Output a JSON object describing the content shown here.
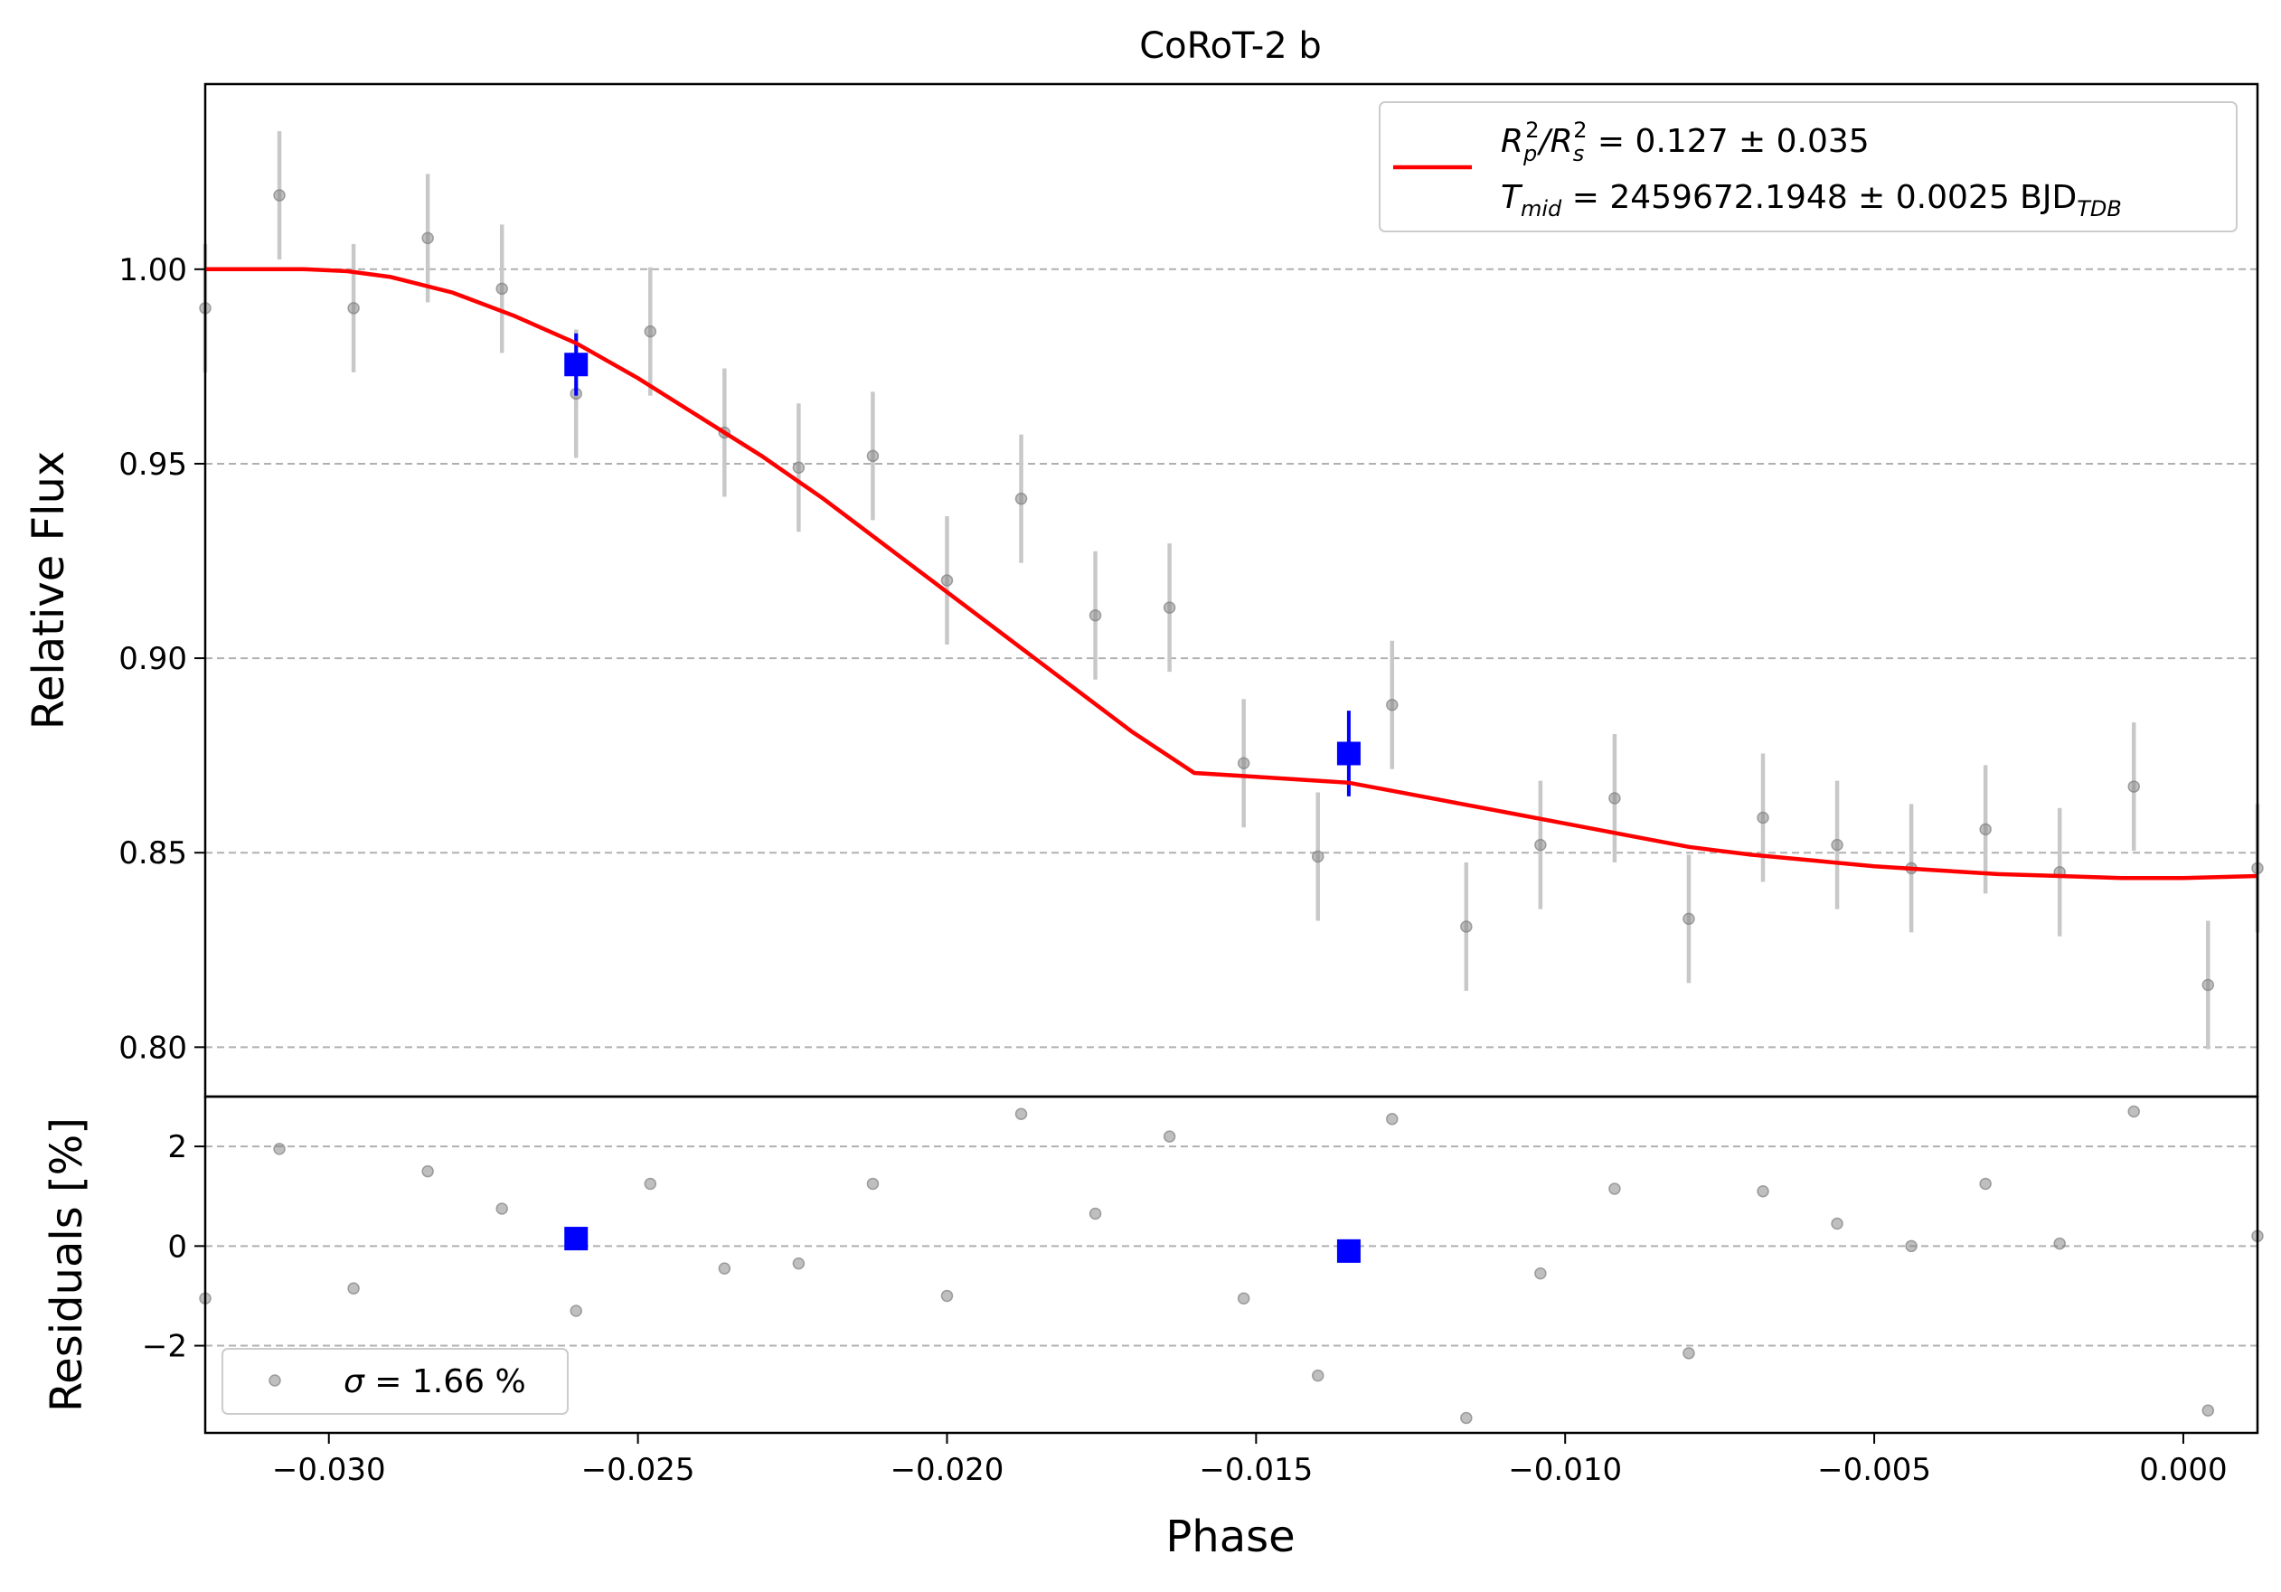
{
  "chart_data": {
    "type": "scatter",
    "title": "CoRoT-2 b",
    "xlabel": "Phase",
    "xlim": [
      -0.032,
      0.0012
    ],
    "xticks": [
      -0.03,
      -0.025,
      -0.02,
      -0.015,
      -0.01,
      -0.005,
      0.0
    ],
    "xtick_labels": [
      "−0.030",
      "−0.025",
      "−0.020",
      "−0.015",
      "−0.010",
      "−0.005",
      "0.000"
    ],
    "grid": true,
    "top_panel": {
      "ylabel": "Relative Flux",
      "ylim": [
        0.7873,
        1.0476
      ],
      "yticks": [
        0.8,
        0.85,
        0.9,
        0.95,
        1.0
      ],
      "ytick_labels": [
        "0.80",
        "0.85",
        "0.90",
        "0.95",
        "1.00"
      ],
      "data_points": {
        "color": "#808080",
        "x": [
          -0.032,
          -0.0308,
          -0.0296,
          -0.0284,
          -0.0272,
          -0.026,
          -0.0248,
          -0.0236,
          -0.0224,
          -0.0212,
          -0.02,
          -0.0188,
          -0.0176,
          -0.0164,
          -0.0152,
          -0.014,
          -0.0128,
          -0.0116,
          -0.0104,
          -0.0092,
          -0.008,
          -0.0068,
          -0.0056,
          -0.0044,
          -0.0032,
          -0.002,
          -0.0008,
          0.0004,
          0.0012
        ],
        "y": [
          0.99,
          1.019,
          0.99,
          1.008,
          0.995,
          0.968,
          0.984,
          0.958,
          0.949,
          0.952,
          0.92,
          0.941,
          0.911,
          0.913,
          0.873,
          0.849,
          0.888,
          0.831,
          0.852,
          0.864,
          0.833,
          0.859,
          0.852,
          0.846,
          0.856,
          0.845,
          0.867,
          0.816,
          0.846
        ],
        "yerr": 0.0165
      },
      "binned": {
        "color": "#0000ff",
        "x": [
          -0.026,
          -0.0135
        ],
        "y": [
          0.9755,
          0.8755
        ],
        "yerr": [
          0.008,
          0.011
        ]
      },
      "model": {
        "color": "#ff0000",
        "x": [
          -0.032,
          -0.0304,
          -0.0297,
          -0.029,
          -0.028,
          -0.027,
          -0.026,
          -0.025,
          -0.024,
          -0.023,
          -0.022,
          -0.021,
          -0.02,
          -0.019,
          -0.018,
          -0.017,
          -0.016,
          -0.015,
          -0.014,
          -0.0135,
          -0.013,
          -0.012,
          -0.011,
          -0.01,
          -0.009,
          -0.008,
          -0.007,
          -0.006,
          -0.005,
          -0.004,
          -0.003,
          -0.002,
          -0.001,
          0.0,
          0.0012
        ],
        "y": [
          1.0,
          1.0,
          0.9995,
          0.998,
          0.994,
          0.988,
          0.981,
          0.972,
          0.962,
          0.952,
          0.941,
          0.929,
          0.917,
          0.905,
          0.893,
          0.881,
          0.8705,
          0.8695,
          0.8685,
          0.868,
          0.8665,
          0.8635,
          0.8605,
          0.8575,
          0.8545,
          0.8515,
          0.8495,
          0.848,
          0.8465,
          0.8455,
          0.8445,
          0.844,
          0.8435,
          0.8435,
          0.844
        ]
      },
      "legend": {
        "placement": "upper right",
        "line1": {
          "prefix": "R",
          "sub1": "p",
          "sup1": "2",
          "slash": "/R",
          "sub2": "s",
          "sup2": "2",
          "rest": " = 0.127 ± 0.035"
        },
        "line2": {
          "prefix": "T",
          "sub": "mid",
          "rest": " = 2459672.1948 ± 0.0025 BJD",
          "sub_tail": "TDB"
        }
      }
    },
    "bottom_panel": {
      "ylabel": "Residuals [%]",
      "ylim": [
        -3.75,
        3.0
      ],
      "yticks": [
        -2,
        0,
        2
      ],
      "ytick_labels": [
        "−2",
        "0",
        "2"
      ],
      "data_points": {
        "color": "#808080",
        "x": [
          -0.032,
          -0.0308,
          -0.0296,
          -0.0284,
          -0.0272,
          -0.026,
          -0.0248,
          -0.0236,
          -0.0224,
          -0.0212,
          -0.02,
          -0.0188,
          -0.0176,
          -0.0164,
          -0.0152,
          -0.014,
          -0.0128,
          -0.0116,
          -0.0104,
          -0.0092,
          -0.008,
          -0.0068,
          -0.0056,
          -0.0044,
          -0.0032,
          -0.002,
          -0.0008,
          0.0004,
          0.0012
        ],
        "y": [
          -1.05,
          1.95,
          -0.85,
          1.5,
          0.75,
          -1.3,
          1.25,
          -0.45,
          -0.35,
          1.25,
          -1.0,
          2.65,
          0.65,
          2.2,
          -1.05,
          -2.6,
          2.55,
          -3.45,
          -0.55,
          1.15,
          -2.15,
          1.1,
          0.45,
          0.0,
          1.25,
          0.05,
          2.7,
          -3.3,
          0.2
        ]
      },
      "binned": {
        "color": "#0000ff",
        "x": [
          -0.026,
          -0.0135
        ],
        "y": [
          0.15,
          -0.1
        ]
      },
      "legend": {
        "placement": "lower left",
        "sigma_symbol": "σ",
        "text": " = 1.66 %"
      }
    }
  }
}
